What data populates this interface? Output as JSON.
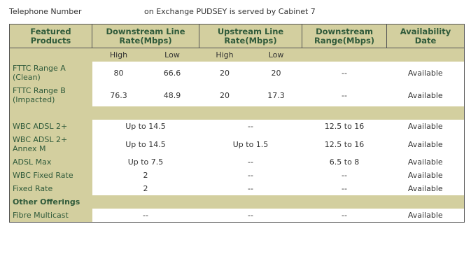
{
  "header": {
    "telephone": "Telephone Number",
    "exchange": "on Exchange PUDSEY is served by Cabinet 7"
  },
  "table": {
    "columns": [
      "Featured Products",
      "Downstream Line Rate(Mbps)",
      "Upstream Line Rate(Mbps)",
      "Downstream Range(Mbps)",
      "Availability Date"
    ],
    "subcolumns": [
      "High",
      "Low",
      "High",
      "Low"
    ],
    "fttc_rows": [
      [
        "FTTC Range A (Clean)",
        "80",
        "66.6",
        "20",
        "20",
        "--",
        "Available"
      ],
      [
        "FTTC Range B (Impacted)",
        "76.3",
        "48.9",
        "20",
        "17.3",
        "--",
        "Available"
      ]
    ],
    "wbc_rows": [
      [
        "WBC ADSL 2+",
        "Up to 14.5",
        "--",
        "12.5 to 16",
        "Available"
      ],
      [
        "WBC ADSL 2+ Annex M",
        "Up to 14.5",
        "Up to 1.5",
        "12.5 to 16",
        "Available"
      ],
      [
        "ADSL Max",
        "Up to 7.5",
        "--",
        "6.5 to 8",
        "Available"
      ],
      [
        "WBC Fixed Rate",
        "2",
        "--",
        "--",
        "Available"
      ],
      [
        "Fixed Rate",
        "2",
        "--",
        "--",
        "Available"
      ]
    ],
    "other_title": "Other Offerings",
    "other_rows": [
      [
        "Fibre Multicast",
        "--",
        "--",
        "--",
        "Available"
      ]
    ]
  }
}
